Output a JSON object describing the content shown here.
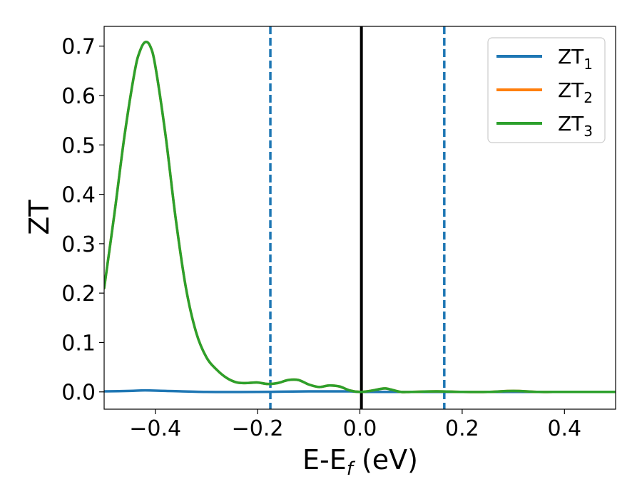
{
  "chart_data": {
    "type": "line",
    "xlabel_main": "E-E",
    "xlabel_sub": "f",
    "xlabel_unit": " (eV)",
    "ylabel": "ZT",
    "xlim": [
      -0.5,
      0.5
    ],
    "ylim": [
      -0.035,
      0.74
    ],
    "xticks": [
      -0.4,
      -0.2,
      0.0,
      0.2,
      0.4
    ],
    "xtick_labels": [
      "−0.4",
      "−0.2",
      "0.0",
      "0.2",
      "0.4"
    ],
    "yticks": [
      0.0,
      0.1,
      0.2,
      0.3,
      0.4,
      0.5,
      0.6,
      0.7
    ],
    "ytick_labels": [
      "0.0",
      "0.1",
      "0.2",
      "0.3",
      "0.4",
      "0.5",
      "0.6",
      "0.7"
    ],
    "legend_position": "top-right",
    "vlines": [
      {
        "x": -0.175,
        "style": "dashed",
        "color": "#1f77b4"
      },
      {
        "x": 0.003,
        "style": "solid",
        "color": "#000000"
      },
      {
        "x": 0.165,
        "style": "dashed",
        "color": "#1f77b4"
      }
    ],
    "series": [
      {
        "name": "ZT",
        "sub": "1",
        "color": "#1f77b4",
        "x": [
          -0.5,
          -0.45,
          -0.42,
          -0.38,
          -0.3,
          -0.2,
          -0.1,
          -0.06,
          -0.02,
          0.0,
          0.05,
          0.1,
          0.2,
          0.3,
          0.4,
          0.5
        ],
        "y": [
          0.001,
          0.002,
          0.003,
          0.002,
          0.0,
          0.0,
          0.001,
          0.001,
          0.001,
          0.0,
          0.0,
          0.0,
          0.0,
          0.0,
          0.0,
          0.0
        ]
      },
      {
        "name": "ZT",
        "sub": "2",
        "color": "#ff7f0e",
        "x": [
          -0.5,
          -0.48,
          -0.46,
          -0.44,
          -0.43,
          -0.42,
          -0.41,
          -0.4,
          -0.38,
          -0.36,
          -0.34,
          -0.32,
          -0.3,
          -0.28,
          -0.26,
          -0.24,
          -0.22,
          -0.2,
          -0.18,
          -0.16,
          -0.14,
          -0.12,
          -0.1,
          -0.08,
          -0.06,
          -0.04,
          -0.02,
          0.0,
          0.02,
          0.04,
          0.05,
          0.06,
          0.08,
          0.1,
          0.15,
          0.2,
          0.25,
          0.3,
          0.35,
          0.4,
          0.5
        ],
        "y": [
          0.21,
          0.36,
          0.52,
          0.65,
          0.69,
          0.708,
          0.7,
          0.66,
          0.52,
          0.35,
          0.21,
          0.12,
          0.07,
          0.045,
          0.028,
          0.019,
          0.018,
          0.019,
          0.016,
          0.018,
          0.024,
          0.024,
          0.015,
          0.01,
          0.013,
          0.011,
          0.003,
          0.0,
          0.002,
          0.006,
          0.007,
          0.005,
          0.0,
          0.0,
          0.001,
          0.0,
          0.0,
          0.002,
          0.0,
          0.0,
          0.0
        ]
      },
      {
        "name": "ZT",
        "sub": "3",
        "color": "#2ca02c",
        "x": [
          -0.5,
          -0.48,
          -0.46,
          -0.44,
          -0.43,
          -0.42,
          -0.41,
          -0.4,
          -0.38,
          -0.36,
          -0.34,
          -0.32,
          -0.3,
          -0.28,
          -0.26,
          -0.24,
          -0.22,
          -0.2,
          -0.18,
          -0.16,
          -0.14,
          -0.12,
          -0.1,
          -0.08,
          -0.06,
          -0.04,
          -0.02,
          0.0,
          0.02,
          0.04,
          0.05,
          0.06,
          0.08,
          0.1,
          0.15,
          0.2,
          0.25,
          0.3,
          0.35,
          0.4,
          0.5
        ],
        "y": [
          0.21,
          0.36,
          0.52,
          0.65,
          0.69,
          0.708,
          0.7,
          0.66,
          0.52,
          0.35,
          0.21,
          0.12,
          0.07,
          0.045,
          0.028,
          0.019,
          0.018,
          0.019,
          0.016,
          0.018,
          0.024,
          0.024,
          0.015,
          0.01,
          0.013,
          0.011,
          0.003,
          0.0,
          0.002,
          0.006,
          0.007,
          0.005,
          0.0,
          0.0,
          0.001,
          0.0,
          0.0,
          0.002,
          0.0,
          0.0,
          0.0
        ]
      }
    ]
  }
}
